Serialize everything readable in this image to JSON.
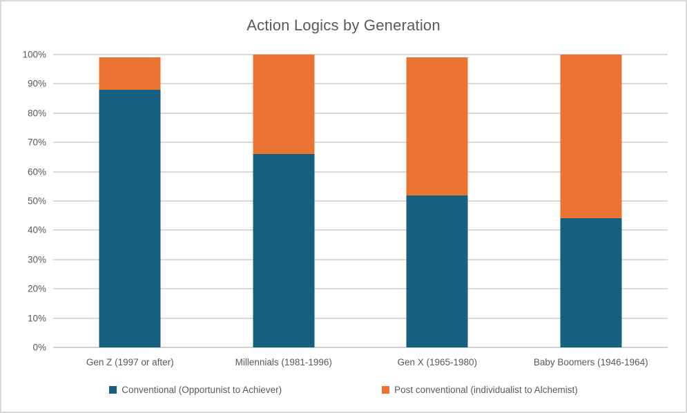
{
  "chart_data": {
    "type": "bar",
    "stacked": true,
    "title": "Action Logics by Generation",
    "categories": [
      "Gen Z (1997 or after)",
      "Millennials (1981-1996)",
      "Gen X (1965-1980)",
      "Baby Boomers (1946-1964)"
    ],
    "series": [
      {
        "name": "Conventional (Opportunist to Achiever)",
        "color": "#17607f",
        "values": [
          88,
          66,
          52,
          44
        ]
      },
      {
        "name": "Post conventional (individualist to Alchemist)",
        "color": "#ec7433",
        "values": [
          11,
          34,
          47,
          56
        ]
      }
    ],
    "totals": [
      99,
      100,
      99,
      100
    ],
    "xlabel": "",
    "ylabel": "",
    "ylim": [
      0,
      100
    ],
    "y_tick_step": 10,
    "y_tick_labels": [
      "0%",
      "10%",
      "20%",
      "30%",
      "40%",
      "50%",
      "60%",
      "70%",
      "80%",
      "90%",
      "100%"
    ],
    "grid": true,
    "legend_position": "bottom",
    "colors": {
      "text": "#595959",
      "gridline": "#d9d9d9",
      "axis_line": "#cfcfcf",
      "border": "#d9d9d9",
      "background": "#ffffff"
    }
  }
}
